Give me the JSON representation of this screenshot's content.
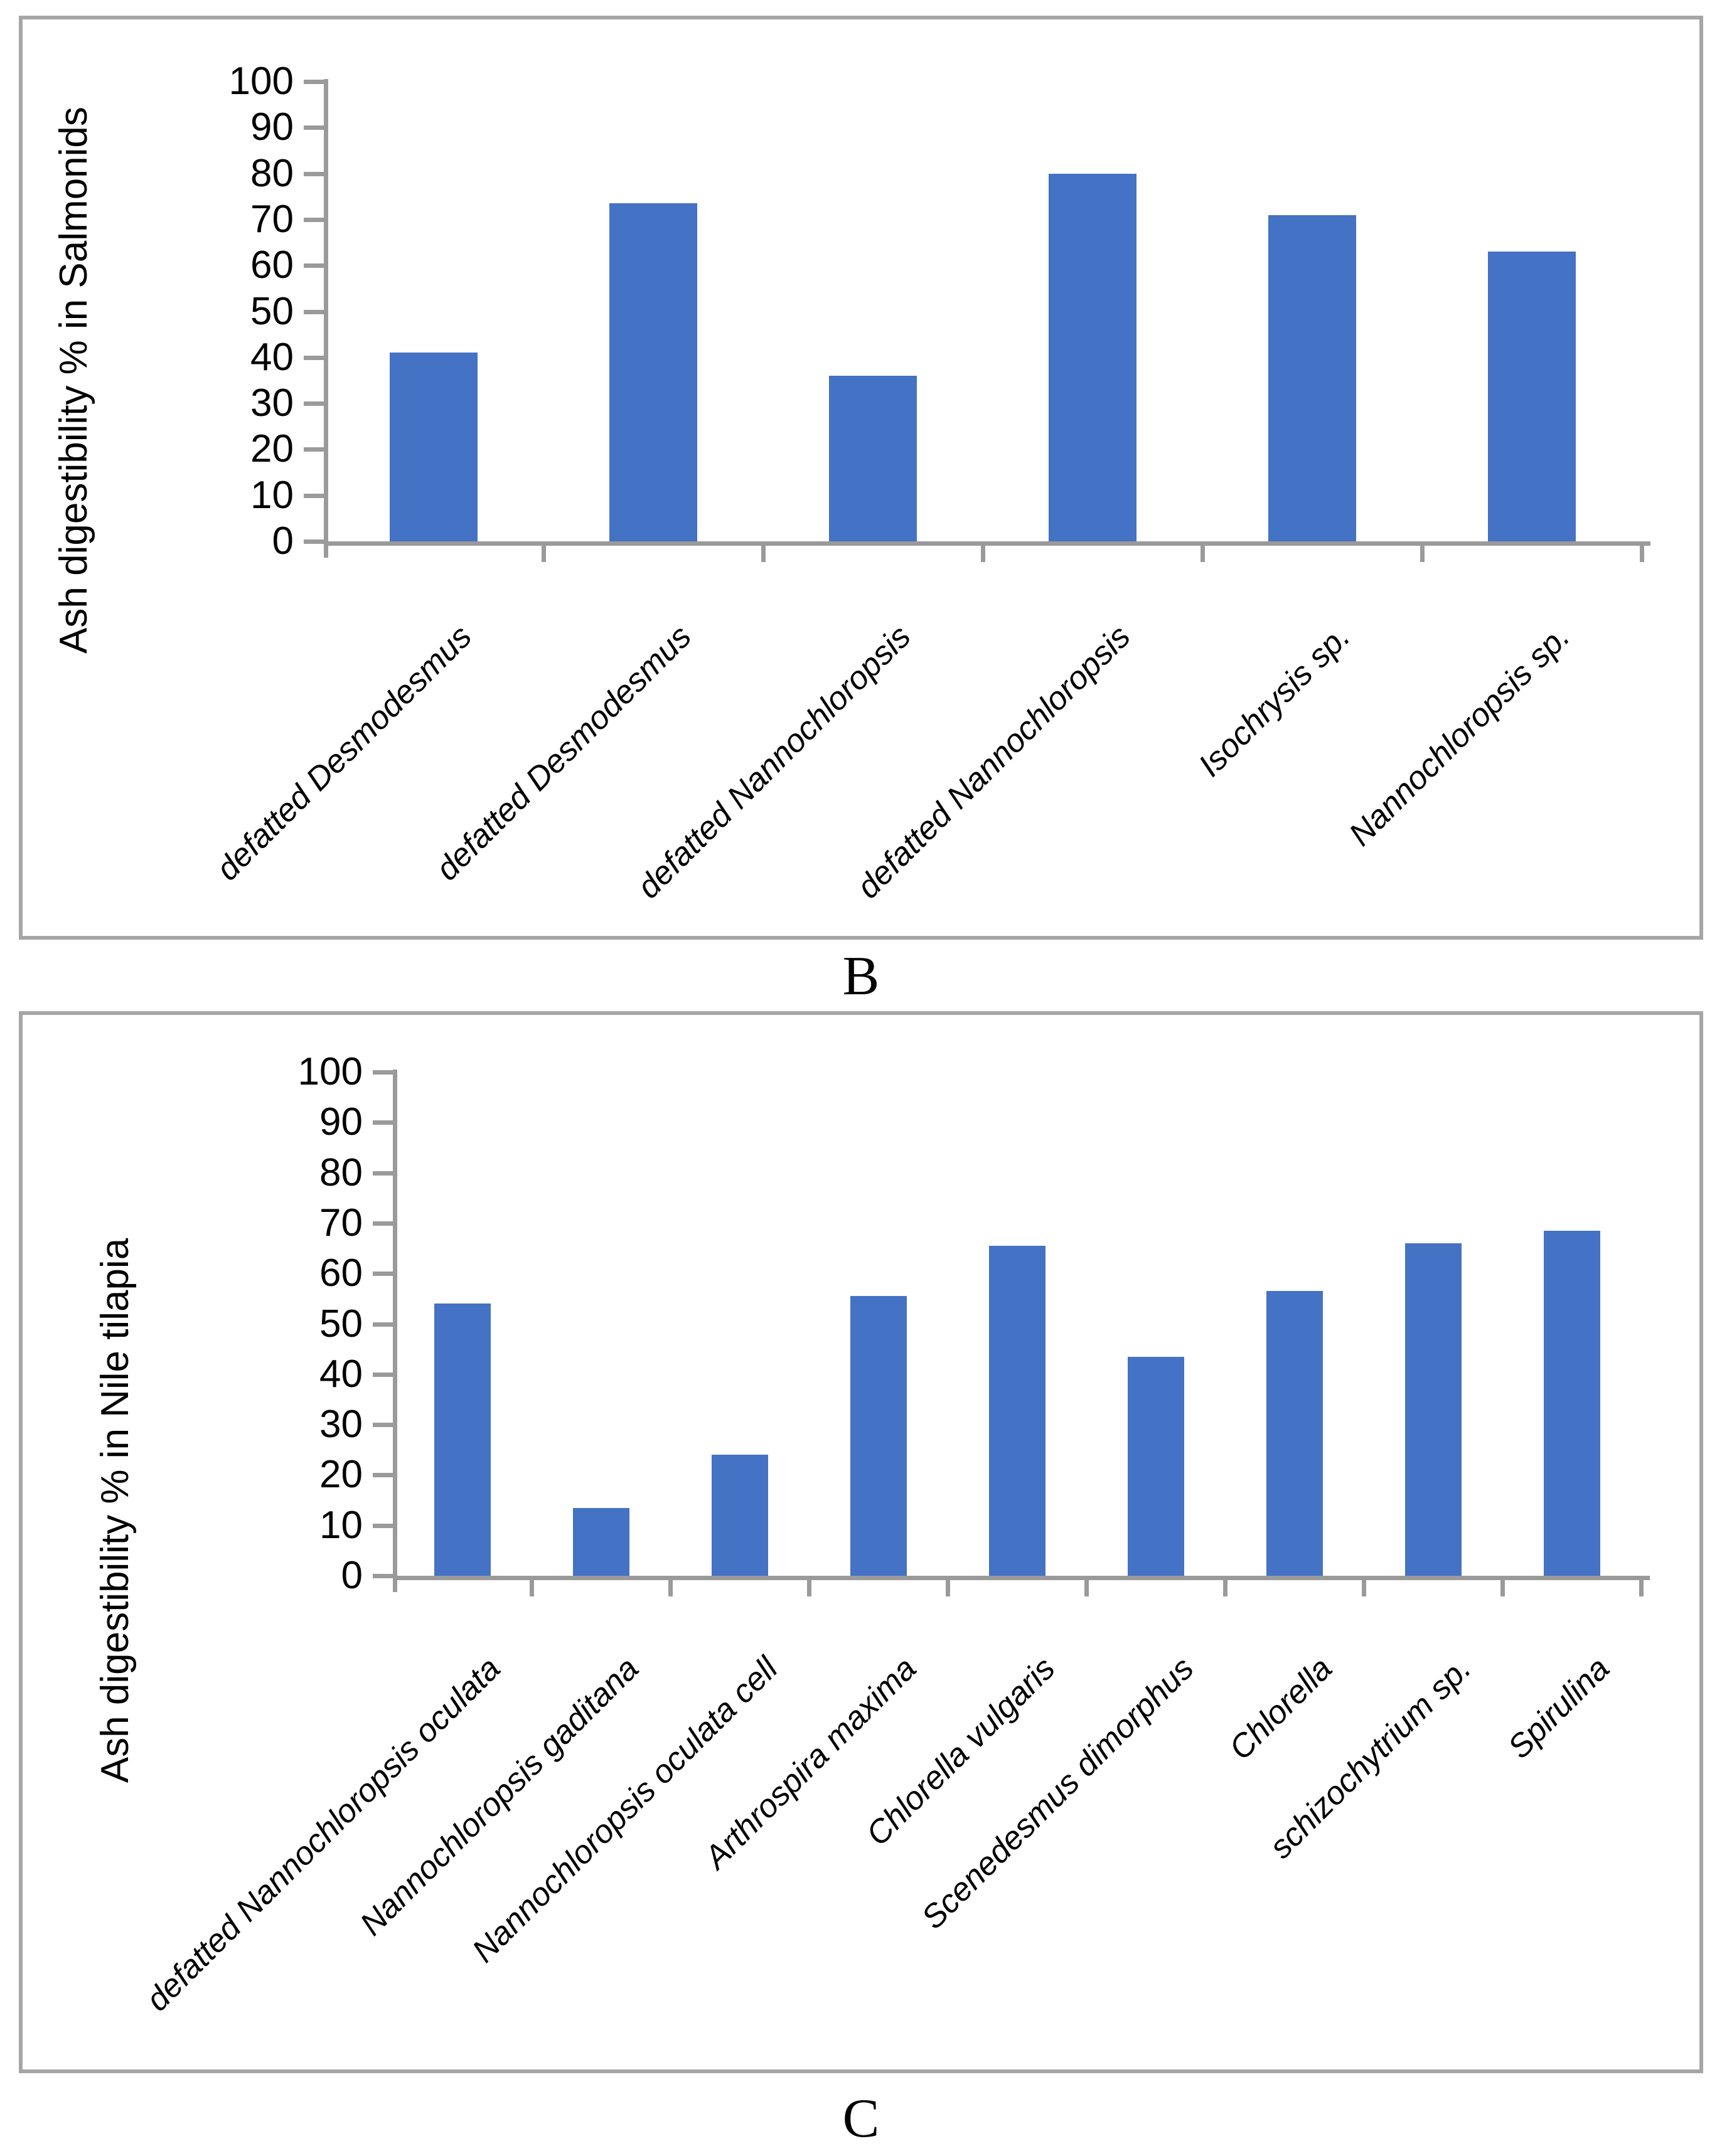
{
  "page": {
    "background": "#FFFFFF"
  },
  "colors": {
    "bar": "#4472C4",
    "axis": "#9A9A9A",
    "panel_border": "#A6A6A6",
    "text": "#000000"
  },
  "chart_data": [
    {
      "id": "B",
      "type": "bar",
      "caption": "B",
      "title": "",
      "xlabel": "",
      "ylabel": "Ash digestibility % in Salmonids",
      "ylim": [
        0,
        100
      ],
      "ytick_step": 10,
      "grid": false,
      "legend": "none",
      "bar_color": "#4472C4",
      "categories": [
        "defatted Desmodesmus",
        "defatted Desmodesmus",
        "defatted Nannochloropsis",
        "defatted Nannochloropsis",
        "Isochrysis sp.",
        "Nannochloropsis sp."
      ],
      "values": [
        41,
        73.5,
        36,
        80,
        71,
        63
      ]
    },
    {
      "id": "C",
      "type": "bar",
      "caption": "C",
      "title": "",
      "xlabel": "",
      "ylabel": "Ash digestibility % in Nile tilapia",
      "ylim": [
        0,
        100
      ],
      "ytick_step": 10,
      "grid": false,
      "legend": "none",
      "bar_color": "#4472C4",
      "categories": [
        "defatted Nannochloropsis oculata",
        "Nannochloropsis gaditana",
        "Nannochloropsis oculata cell",
        "Arthrospira maxima",
        "Chlorella vulgaris",
        "Scenedesmus dimorphus",
        "Chlorella",
        "schizochytrium sp.",
        "Spirulina"
      ],
      "values": [
        54,
        13.5,
        24,
        55.5,
        65.5,
        43.5,
        56.5,
        66,
        68.5
      ]
    }
  ]
}
